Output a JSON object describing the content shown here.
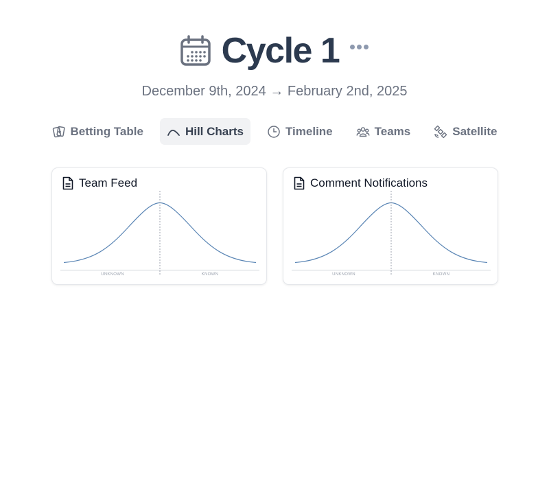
{
  "header": {
    "title": "Cycle 1",
    "icon": "calendar-icon",
    "more_icon": "more-horizontal-icon"
  },
  "dates": {
    "text": "December 9th, 2024 → February 2nd, 2025"
  },
  "tabs": [
    {
      "label": "Betting Table",
      "icon": "cards-icon",
      "active": false
    },
    {
      "label": "Hill Charts",
      "icon": "hill-icon",
      "active": true
    },
    {
      "label": "Timeline",
      "icon": "clock-icon",
      "active": false
    },
    {
      "label": "Teams",
      "icon": "users-icon",
      "active": false
    },
    {
      "label": "Satellite",
      "icon": "satellite-icon",
      "active": false
    }
  ],
  "cards": [
    {
      "title": "Team Feed",
      "icon": "document-icon",
      "axis_left": "UNKNOWN",
      "axis_right": "KNOWN"
    },
    {
      "title": "Comment Notifications",
      "icon": "document-icon",
      "axis_left": "UNKNOWN",
      "axis_right": "KNOWN"
    }
  ],
  "colors": {
    "title": "#2c3a4f",
    "hill_curve": "#5b86b5",
    "active_tab_bg": "#f1f2f4"
  }
}
